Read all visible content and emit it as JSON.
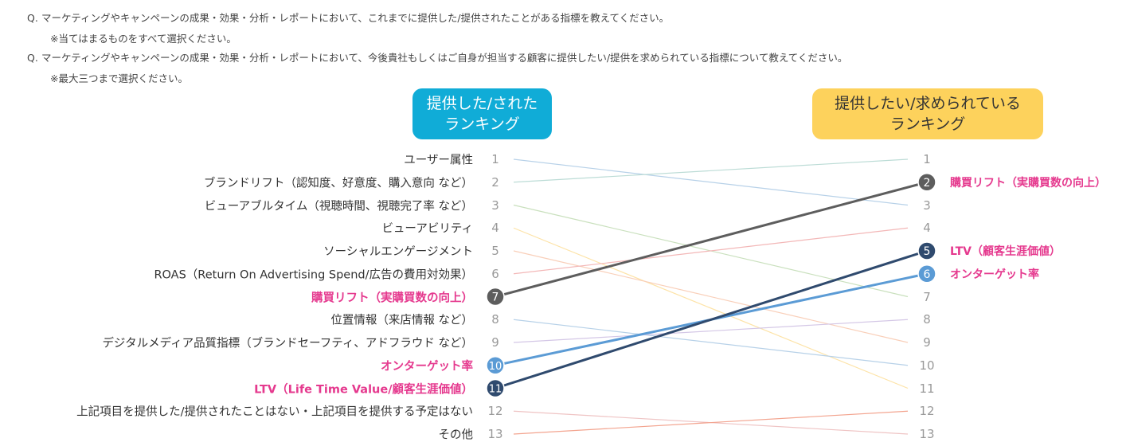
{
  "questions": [
    {
      "label": "Q.",
      "text": "マーケティングやキャンペーンの成果・効果・分析・レポートにおいて、これまでに提供した/提供されたことがある指標を教えてください。",
      "note": "※当てはまるものをすべて選択ください。"
    },
    {
      "label": "Q.",
      "text": "マーケティングやキャンペーンの成果・効果・分析・レポートにおいて、今後貴社もしくはご自身が担当する顧客に提供したい/提供を求められている指標について教えてください。",
      "note": "※最大三つまで選択ください。"
    }
  ],
  "headers": {
    "left": "提供した/された\nランキング",
    "right": "提供したい/求められている\nランキング"
  },
  "colors": {
    "left_header": "#10acd7",
    "right_header": "#fdd25c",
    "highlight_text": "#e5398e",
    "rank_num": "#999999"
  },
  "items": [
    {
      "label": "ユーザー属性",
      "left": 1,
      "right": 3,
      "color": "#b7d1e8",
      "highlight": false
    },
    {
      "label": "ブランドリフト（認知度、好意度、購入意向 など）",
      "left": 2,
      "right": 1,
      "color": "#bcdcd6",
      "highlight": false
    },
    {
      "label": "ビューアブルタイム（視聴時間、視聴完了率 など）",
      "left": 3,
      "right": 7,
      "color": "#c9e0bd",
      "highlight": false
    },
    {
      "label": "ビューアビリティ",
      "left": 4,
      "right": 11,
      "color": "#fde3a7",
      "highlight": false
    },
    {
      "label": "ソーシャルエンゲージメント",
      "left": 5,
      "right": 9,
      "color": "#f9cfb9",
      "highlight": false
    },
    {
      "label": "ROAS（Return On Advertising Spend/広告の費用対効果）",
      "left": 6,
      "right": 4,
      "color": "#f3b7b7",
      "highlight": false
    },
    {
      "label": "購買リフト（実購買数の向上）",
      "left": 7,
      "right": 2,
      "color": "#5d5d5d",
      "highlight": true,
      "right_label": "購買リフト（実購買数の向上）",
      "circle": "#5d5d5d"
    },
    {
      "label": "位置情報（来店情報 など）",
      "left": 8,
      "right": 10,
      "color": "#b7d1e8",
      "highlight": false
    },
    {
      "label": "デジタルメディア品質指標（ブランドセーフティ、アドフラウド など）",
      "left": 9,
      "right": 8,
      "color": "#d4c7e6",
      "highlight": false
    },
    {
      "label": "オンターゲット率",
      "left": 10,
      "right": 6,
      "color": "#5b9bd5",
      "highlight": true,
      "right_label": "オンターゲット率",
      "circle": "#5b9bd5"
    },
    {
      "label": "LTV（Life Time Value/顧客生涯価値）",
      "left": 11,
      "right": 5,
      "color": "#2f4a6e",
      "highlight": true,
      "right_label": "LTV（顧客生涯価値）",
      "circle": "#2f4a6e"
    },
    {
      "label": "上記項目を提供した/提供されたことはない・上記項目を提供する予定はない",
      "left": 12,
      "right": 13,
      "color": "#efc4c4",
      "highlight": false
    },
    {
      "label": "その他",
      "left": 13,
      "right": 12,
      "color": "#f3a48f",
      "highlight": false
    }
  ]
}
